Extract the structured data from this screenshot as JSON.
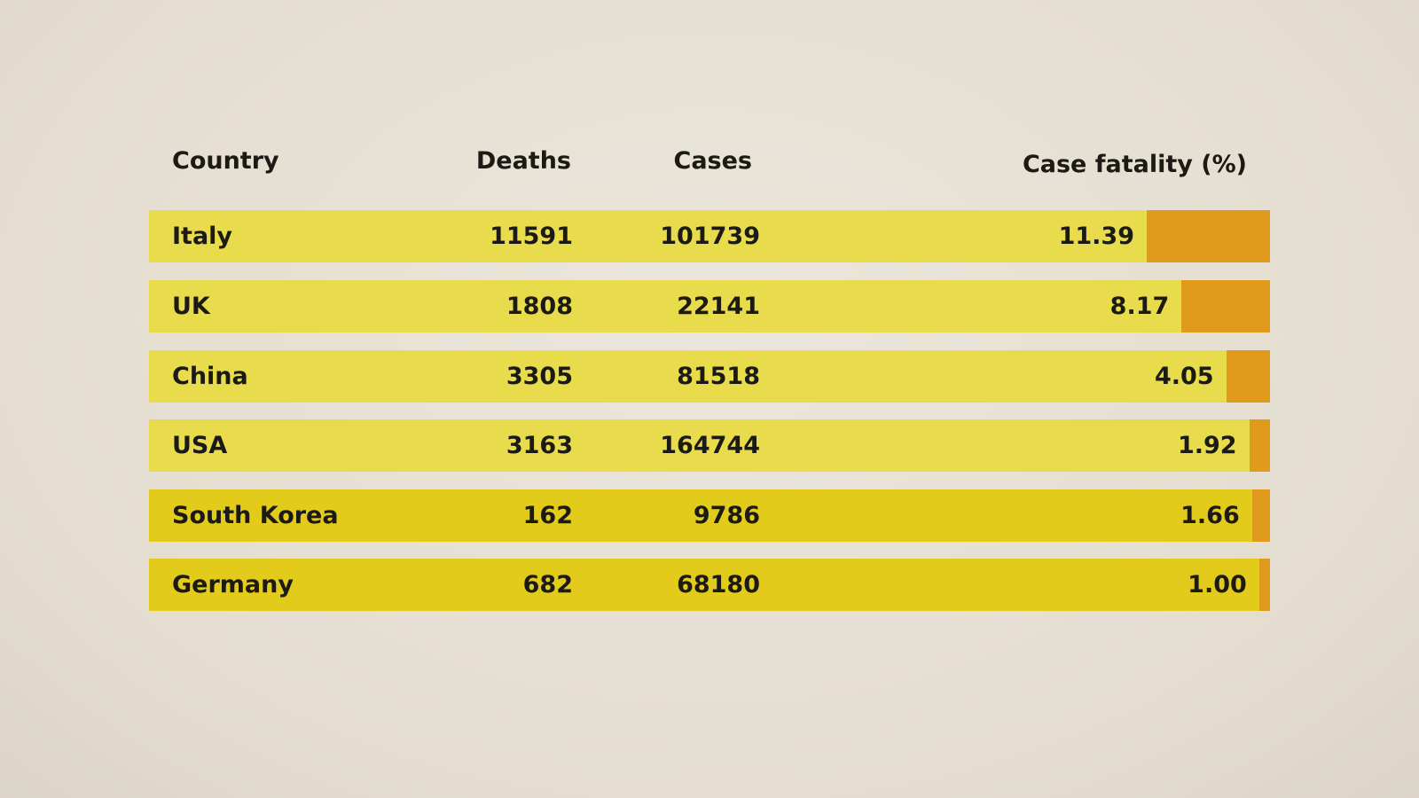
{
  "chart_data": {
    "type": "table",
    "columns": [
      "Country",
      "Deaths",
      "Cases",
      "Case fatality (%)"
    ],
    "rows": [
      {
        "country": "Italy",
        "deaths": "11591",
        "cases": "101739",
        "fatality": "11.39",
        "fatality_value": 11.39
      },
      {
        "country": "UK",
        "deaths": "1808",
        "cases": "22141",
        "fatality": "8.17",
        "fatality_value": 8.17
      },
      {
        "country": "China",
        "deaths": "3305",
        "cases": "81518",
        "fatality": "4.05",
        "fatality_value": 4.05
      },
      {
        "country": "USA",
        "deaths": "3163",
        "cases": "164744",
        "fatality": "1.92",
        "fatality_value": 1.92
      },
      {
        "country": "South Korea",
        "deaths": "162",
        "cases": "9786",
        "fatality": "1.66",
        "fatality_value": 1.66
      },
      {
        "country": "Germany",
        "deaths": "682",
        "cases": "68180",
        "fatality": "1.00",
        "fatality_value": 1.0
      }
    ],
    "colors": {
      "row_light": "#e8dc4c",
      "row_dark": "#e3cb1c",
      "fatality_bar": "#e09a1c",
      "background": "#e6e0d4"
    }
  }
}
